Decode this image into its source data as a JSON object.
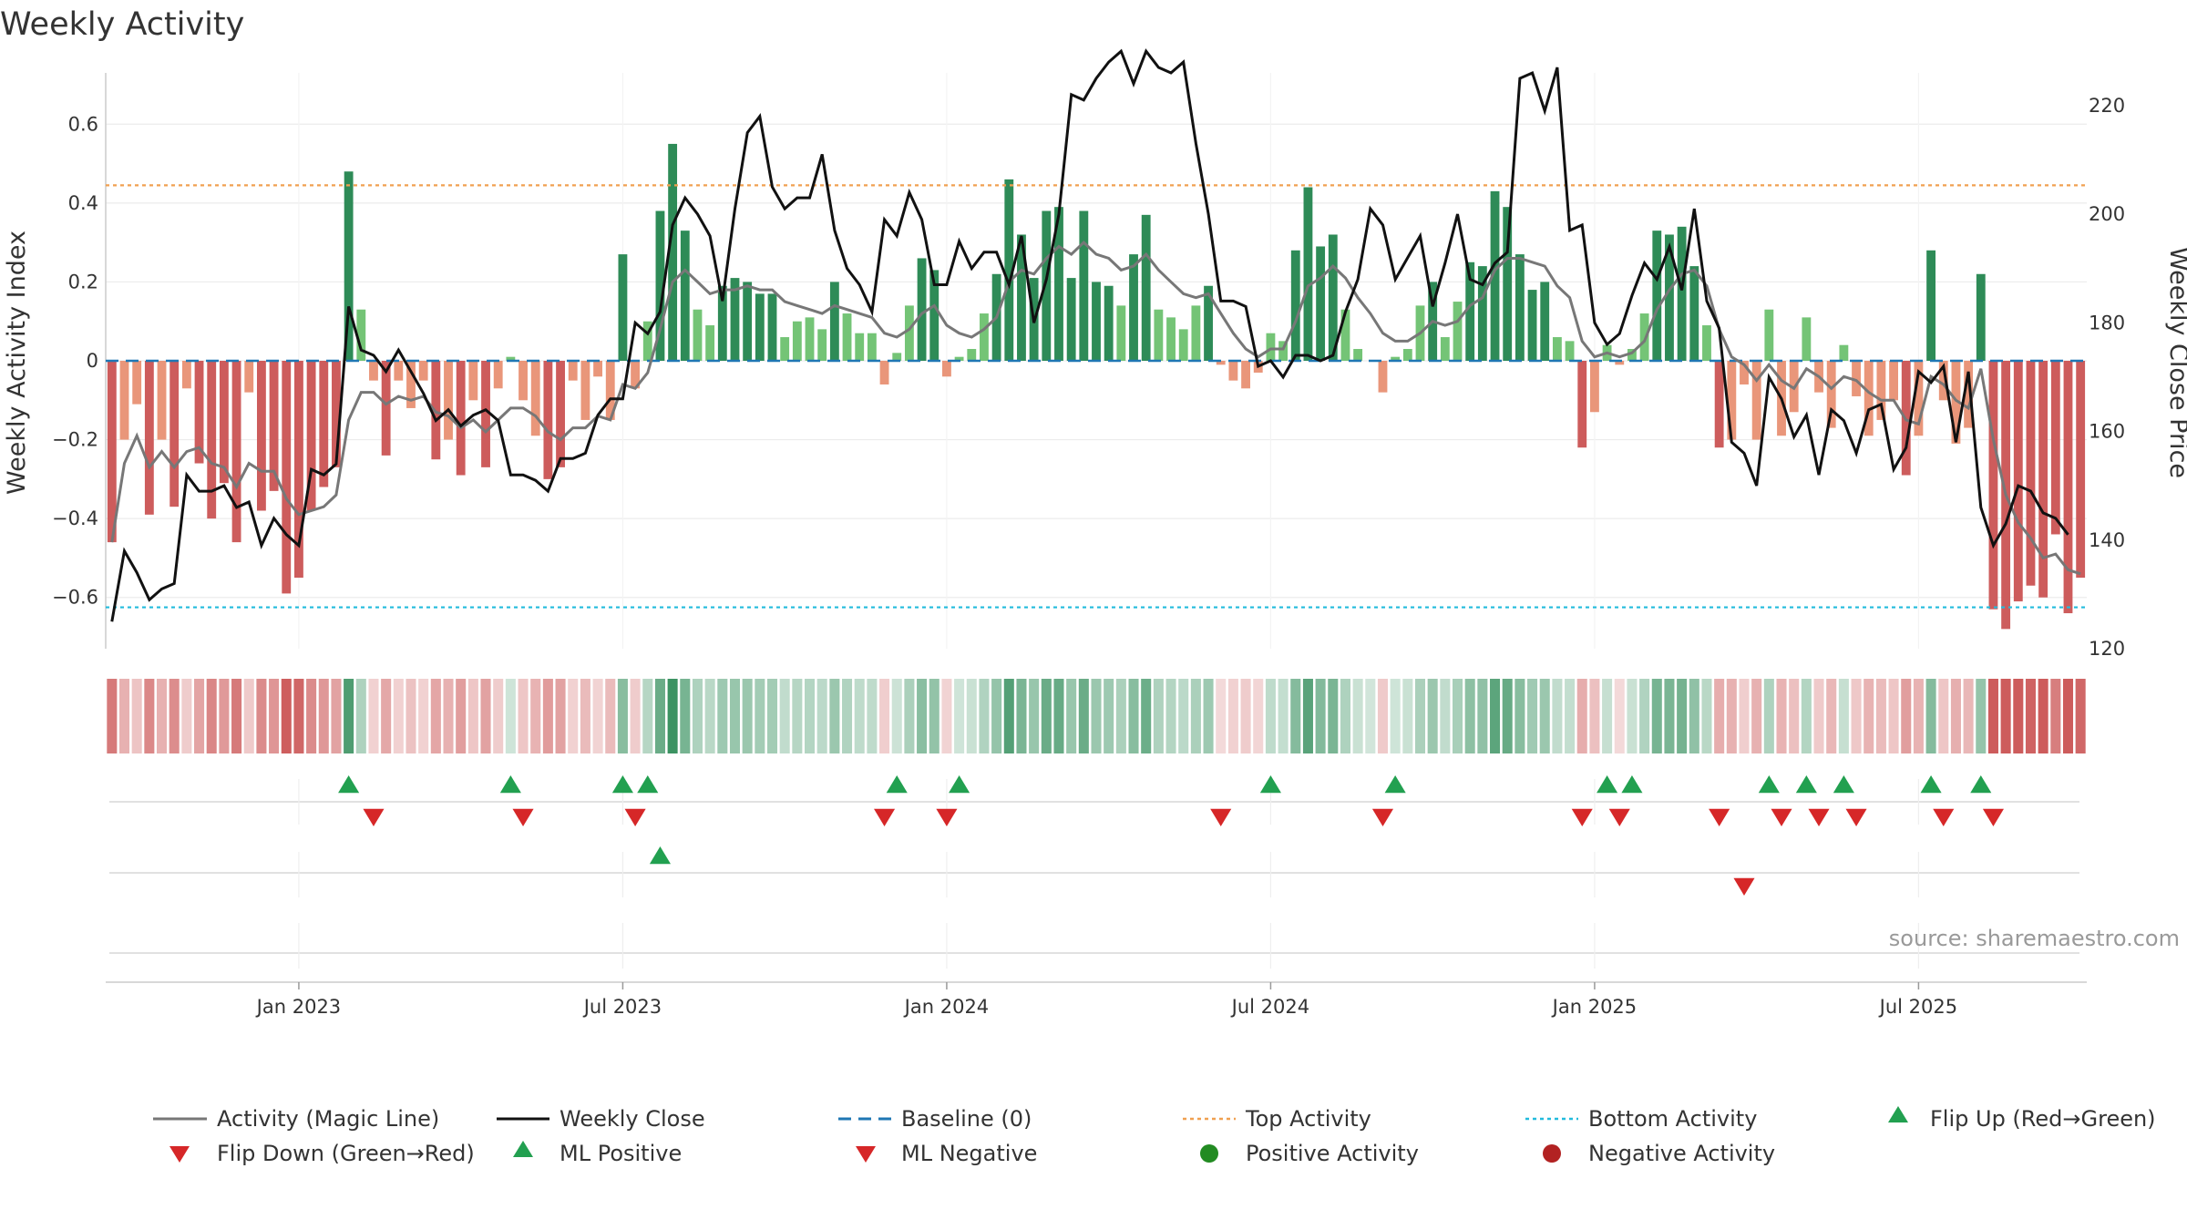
{
  "chart_data": {
    "type": "bar",
    "title": "Weekly Activity",
    "ylabel": "Weekly Activity Index",
    "y2label": "Weekly Close Price",
    "source": "source: sharemaestro.com",
    "ylim": [
      -0.73,
      0.73
    ],
    "y2lim": [
      120,
      226
    ],
    "yticks": [
      -0.6,
      -0.4,
      -0.2,
      0,
      0.2,
      0.4,
      0.6
    ],
    "yticklabels": [
      "−0.6",
      "−0.4",
      "−0.2",
      "0",
      "0.2",
      "0.4",
      "0.6"
    ],
    "y2ticks": [
      120,
      140,
      160,
      180,
      200,
      220
    ],
    "xticks": [
      {
        "index": 15,
        "label": "Jan 2023"
      },
      {
        "index": 41,
        "label": "Jul 2023"
      },
      {
        "index": 67,
        "label": "Jan 2024"
      },
      {
        "index": 93,
        "label": "Jul 2024"
      },
      {
        "index": 119,
        "label": "Jan 2025"
      },
      {
        "index": 145,
        "label": "Jul 2025"
      }
    ],
    "thresholds": {
      "top": 0.445,
      "bottom": -0.625,
      "baseline": 0
    },
    "activity": [
      -0.46,
      -0.2,
      -0.11,
      -0.39,
      -0.2,
      -0.37,
      -0.07,
      -0.26,
      -0.4,
      -0.31,
      -0.46,
      -0.08,
      -0.38,
      -0.33,
      -0.59,
      -0.55,
      -0.38,
      -0.32,
      -0.27,
      0.48,
      0.13,
      -0.05,
      -0.24,
      -0.05,
      -0.12,
      -0.05,
      -0.25,
      -0.2,
      -0.29,
      -0.1,
      -0.27,
      -0.07,
      0.01,
      -0.1,
      -0.19,
      -0.3,
      -0.27,
      -0.05,
      -0.15,
      -0.04,
      -0.15,
      0.27,
      -0.07,
      0.1,
      0.38,
      0.55,
      0.33,
      0.13,
      0.09,
      0.19,
      0.21,
      0.2,
      0.17,
      0.17,
      0.06,
      0.1,
      0.11,
      0.08,
      0.2,
      0.12,
      0.07,
      0.07,
      -0.06,
      0.02,
      0.14,
      0.26,
      0.23,
      -0.04,
      0.01,
      0.03,
      0.12,
      0.22,
      0.46,
      0.32,
      0.21,
      0.38,
      0.39,
      0.21,
      0.38,
      0.2,
      0.19,
      0.14,
      0.27,
      0.37,
      0.13,
      0.11,
      0.08,
      0.14,
      0.19,
      -0.01,
      -0.05,
      -0.07,
      -0.03,
      0.07,
      0.05,
      0.28,
      0.44,
      0.29,
      0.32,
      0.13,
      0.03,
      0,
      -0.08,
      0.01,
      0.03,
      0.14,
      0.2,
      0.06,
      0.15,
      0.25,
      0.24,
      0.43,
      0.39,
      0.27,
      0.18,
      0.2,
      0.06,
      0.05,
      -0.22,
      -0.13,
      0.04,
      -0.01,
      0.03,
      0.12,
      0.33,
      0.32,
      0.34,
      0.24,
      0.09,
      -0.22,
      -0.2,
      -0.06,
      -0.2,
      0.13,
      -0.19,
      -0.13,
      0.11,
      -0.08,
      -0.17,
      0.04,
      -0.09,
      -0.19,
      -0.15,
      -0.1,
      -0.29,
      -0.19,
      0.28,
      -0.1,
      -0.21,
      -0.17,
      0.22,
      -0.63,
      -0.68,
      -0.61,
      -0.57,
      -0.6,
      -0.44,
      -0.64,
      -0.55
    ],
    "magic_line": [
      -0.46,
      -0.26,
      -0.19,
      -0.27,
      -0.23,
      -0.27,
      -0.23,
      -0.22,
      -0.26,
      -0.27,
      -0.32,
      -0.26,
      -0.28,
      -0.28,
      -0.35,
      -0.39,
      -0.38,
      -0.37,
      -0.34,
      -0.15,
      -0.08,
      -0.08,
      -0.11,
      -0.09,
      -0.1,
      -0.09,
      -0.13,
      -0.14,
      -0.17,
      -0.15,
      -0.18,
      -0.15,
      -0.12,
      -0.12,
      -0.14,
      -0.18,
      -0.2,
      -0.17,
      -0.17,
      -0.14,
      -0.15,
      -0.06,
      -0.07,
      -0.03,
      0.08,
      0.2,
      0.23,
      0.2,
      0.17,
      0.18,
      0.18,
      0.19,
      0.18,
      0.18,
      0.15,
      0.14,
      0.13,
      0.12,
      0.14,
      0.13,
      0.12,
      0.11,
      0.07,
      0.06,
      0.08,
      0.12,
      0.14,
      0.09,
      0.07,
      0.06,
      0.08,
      0.11,
      0.2,
      0.23,
      0.22,
      0.26,
      0.29,
      0.27,
      0.3,
      0.27,
      0.26,
      0.23,
      0.24,
      0.27,
      0.23,
      0.2,
      0.17,
      0.16,
      0.17,
      0.12,
      0.07,
      0.03,
      0.01,
      0.03,
      0.03,
      0.1,
      0.19,
      0.21,
      0.24,
      0.21,
      0.16,
      0.12,
      0.07,
      0.05,
      0.05,
      0.07,
      0.1,
      0.09,
      0.1,
      0.14,
      0.16,
      0.23,
      0.26,
      0.26,
      0.25,
      0.24,
      0.19,
      0.16,
      0.05,
      0.01,
      0.02,
      0.01,
      0.02,
      0.05,
      0.13,
      0.18,
      0.22,
      0.23,
      0.19,
      0.08,
      0.01,
      -0.01,
      -0.05,
      -0.01,
      -0.05,
      -0.07,
      -0.02,
      -0.04,
      -0.07,
      -0.04,
      -0.05,
      -0.08,
      -0.1,
      -0.1,
      -0.15,
      -0.16,
      -0.04,
      -0.06,
      -0.1,
      -0.12,
      -0.02,
      -0.2,
      -0.34,
      -0.41,
      -0.45,
      -0.5,
      -0.49,
      -0.53,
      -0.54
    ],
    "weekly_close": [
      125,
      138,
      134,
      129,
      131,
      132,
      152,
      149,
      149,
      150,
      146,
      147,
      139,
      144,
      141,
      139,
      153,
      152,
      154,
      183,
      175,
      174,
      171,
      175,
      171,
      167,
      162,
      164,
      161,
      163,
      164,
      162,
      152,
      152,
      151,
      149,
      155,
      155,
      156,
      163,
      166,
      166,
      180,
      178,
      182,
      198,
      203,
      200,
      196,
      184,
      201,
      215,
      218,
      205,
      201,
      203,
      203,
      211,
      197,
      190,
      187,
      182,
      199,
      196,
      204,
      199,
      187,
      187,
      195,
      190,
      193,
      193,
      187,
      196,
      180,
      188,
      200,
      222,
      221,
      225,
      228,
      230,
      224,
      230,
      227,
      226,
      228,
      213,
      200,
      184,
      184,
      183,
      172,
      173,
      170,
      174,
      174,
      173,
      174,
      182,
      188,
      201,
      198,
      188,
      192,
      196,
      183,
      191,
      200,
      188,
      187,
      191,
      193,
      225,
      226,
      219,
      227,
      197,
      198,
      180,
      176,
      178,
      185,
      191,
      188,
      194,
      186,
      201,
      184,
      179,
      158,
      156,
      150,
      170,
      166,
      159,
      163,
      152,
      164,
      162,
      156,
      164,
      165,
      153,
      157,
      171,
      169,
      172,
      158,
      171,
      146,
      139,
      143,
      150,
      149,
      145,
      144,
      141
    ]
  },
  "legend": {
    "magic_line": "Activity (Magic Line)",
    "weekly_close": "Weekly Close",
    "baseline": "Baseline (0)",
    "top_activity": "Top Activity",
    "bottom_activity": "Bottom Activity",
    "flip_up": "Flip Up (Red→Green)",
    "flip_down": "Flip Down (Green→Red)",
    "ml_positive": "ML Positive",
    "ml_negative": "ML Negative",
    "positive_activity": "Positive Activity",
    "negative_activity": "Negative Activity"
  },
  "colors": {
    "pos_strong": "#2e8b57",
    "pos_light": "#74c476",
    "neg_strong": "#cd5c5c",
    "neg_light": "#e9967a",
    "magic_line": "#777777",
    "close_line": "#111111",
    "baseline": "#1f77b4",
    "top": "#f0a050",
    "bottom": "#22bbdd",
    "up_marker": "#22a050",
    "down_marker": "#d62728",
    "pos_dot": "#228b22",
    "neg_dot": "#b22222",
    "text": "#333333"
  }
}
